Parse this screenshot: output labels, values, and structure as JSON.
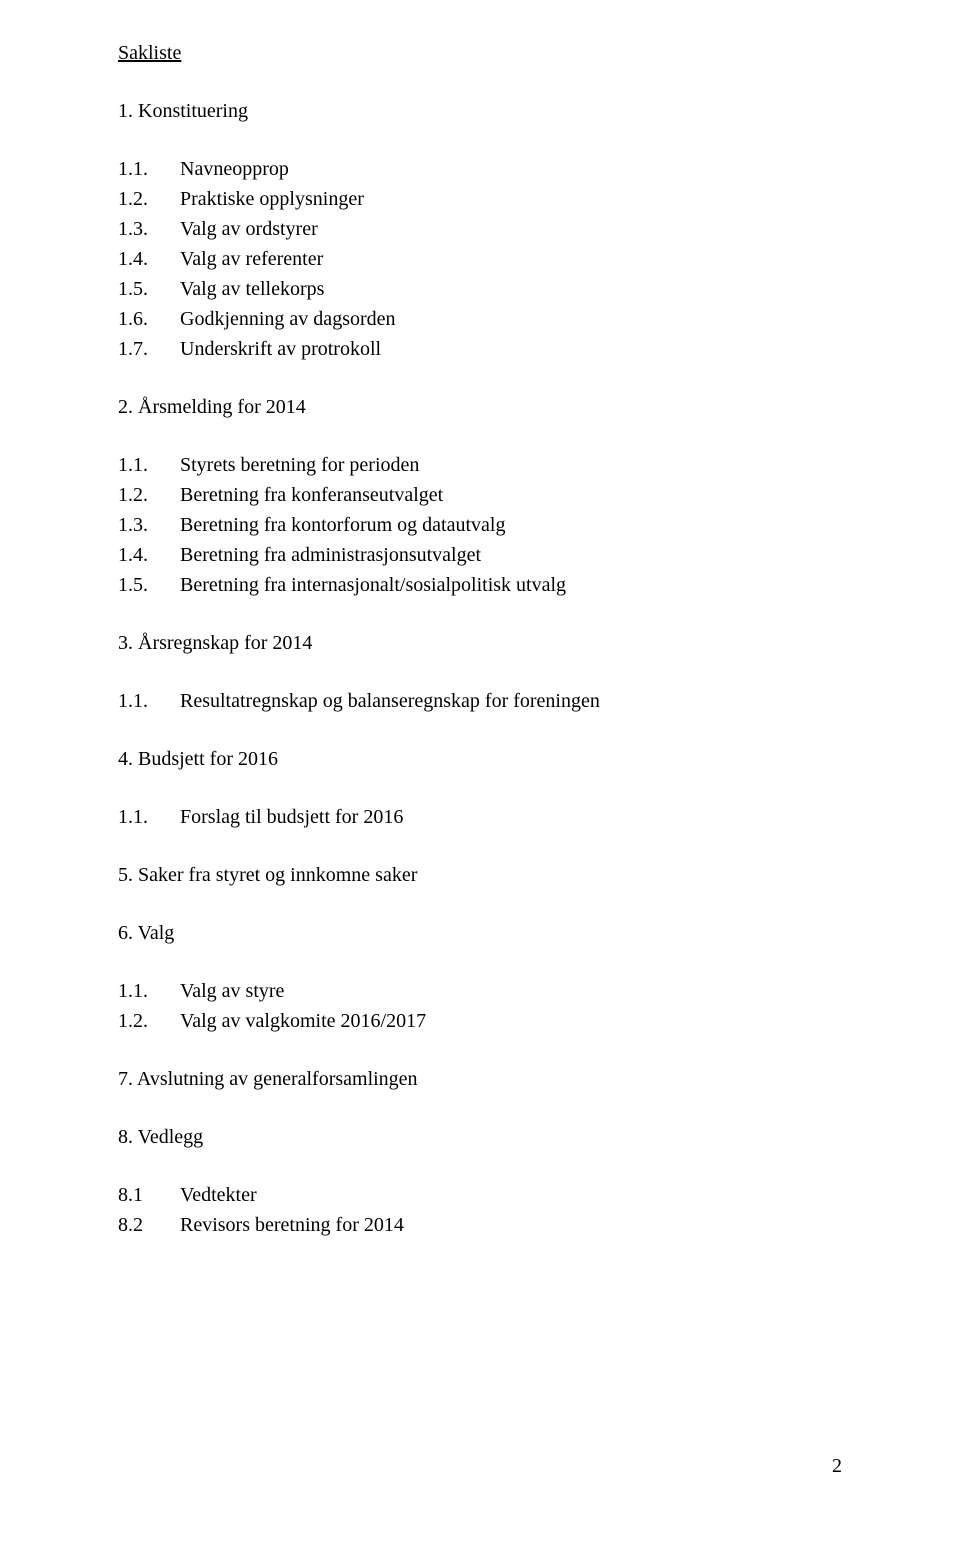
{
  "title": "Sakliste",
  "pageNumber": "2",
  "sections": [
    {
      "heading": "1. Konstituering",
      "items": [
        {
          "num": "1.1.",
          "label": "Navneopprop"
        },
        {
          "num": "1.2.",
          "label": "Praktiske opplysninger"
        },
        {
          "num": "1.3.",
          "label": "Valg av ordstyrer"
        },
        {
          "num": "1.4.",
          "label": "Valg av referenter"
        },
        {
          "num": "1.5.",
          "label": "Valg av tellekorps"
        },
        {
          "num": "1.6.",
          "label": "Godkjenning av dagsorden"
        },
        {
          "num": "1.7.",
          "label": "Underskrift av protrokoll"
        }
      ]
    },
    {
      "heading": "2. Årsmelding for 2014",
      "items": [
        {
          "num": "1.1.",
          "label": "Styrets beretning for perioden"
        },
        {
          "num": "1.2.",
          "label": "Beretning fra konferanseutvalget"
        },
        {
          "num": "1.3.",
          "label": "Beretning fra kontorforum og datautvalg"
        },
        {
          "num": "1.4.",
          "label": "Beretning fra administrasjonsutvalget"
        },
        {
          "num": "1.5.",
          "label": "Beretning fra internasjonalt/sosialpolitisk utvalg"
        }
      ]
    },
    {
      "heading": "3. Årsregnskap for 2014",
      "items": [
        {
          "num": "1.1.",
          "label": "Resultatregnskap og balanseregnskap for foreningen"
        }
      ]
    },
    {
      "heading": "4. Budsjett for 2016",
      "items": [
        {
          "num": "1.1.",
          "label": "Forslag til budsjett for 2016"
        }
      ]
    },
    {
      "heading": "5. Saker fra styret og innkomne saker",
      "items": []
    },
    {
      "heading": "6. Valg",
      "items": [
        {
          "num": "1.1.",
          "label": "Valg av styre"
        },
        {
          "num": "1.2.",
          "label": "Valg av valgkomite 2016/2017"
        }
      ]
    },
    {
      "heading": "7. Avslutning av generalforsamlingen",
      "items": []
    },
    {
      "heading": "8. Vedlegg",
      "items": [
        {
          "num": "8.1",
          "label": "Vedtekter"
        },
        {
          "num": "8.2",
          "label": "Revisors beretning for 2014"
        }
      ]
    }
  ]
}
